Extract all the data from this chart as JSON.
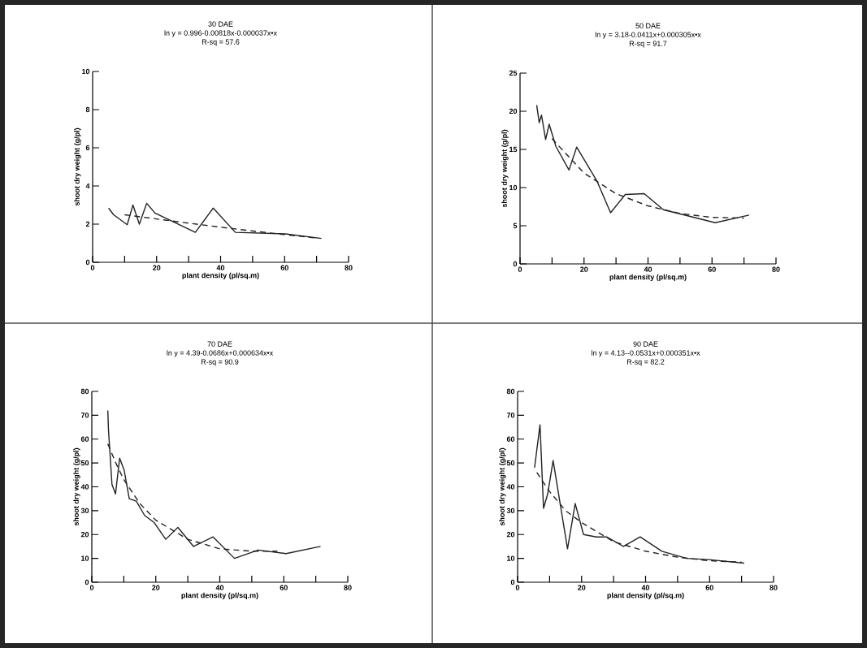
{
  "chart_data": [
    {
      "type": "line",
      "title": "30 DAE",
      "subtitle": "ln y = 0.996-0.00818x-0.000037x•x",
      "annotations": [
        "R-sq = 57.6"
      ],
      "xlabel": "plant density (pl/sq.m)",
      "ylabel": "shoot dry weight (g/pl)",
      "xlim": [
        0,
        80
      ],
      "ylim": [
        0,
        10
      ],
      "xticks": [
        0,
        {
          "value": 10,
          "label": null
        },
        20,
        {
          "value": 30,
          "label": null
        },
        40,
        {
          "value": 50,
          "label": null
        },
        60,
        {
          "value": 70,
          "label": null
        },
        80
      ],
      "yticks": [
        0,
        2,
        4,
        6,
        8,
        10
      ],
      "grid": false,
      "series": [
        {
          "color": "#222222",
          "line_style": "solid",
          "x": [
            5,
            6.5,
            10.8,
            12.6,
            14.6,
            16.9,
            19.5,
            32.1,
            37.7,
            44.6,
            60.2,
            71.5
          ],
          "values": [
            2.84,
            2.5,
            1.97,
            3.0,
            2.0,
            3.09,
            2.58,
            1.57,
            2.84,
            1.57,
            1.49,
            1.25
          ]
        },
        {
          "color": "#222222",
          "line_style": "dashed",
          "x": [
            10,
            20,
            30,
            40,
            50,
            60,
            70
          ],
          "values": [
            2.49,
            2.27,
            2.05,
            1.84,
            1.64,
            1.45,
            1.27
          ]
        }
      ]
    },
    {
      "type": "line",
      "title": "50 DAE",
      "subtitle": "ln y = 3.18-0.0411x+0.000305x•x",
      "annotations": [
        "R-sq = 91.7"
      ],
      "xlabel": "plant density (pl/sq.m)",
      "ylabel": "shoot dry weight (g/pl)",
      "xlim": [
        0,
        80
      ],
      "ylim": [
        0,
        25
      ],
      "xticks": [
        0,
        {
          "value": 10,
          "label": null
        },
        20,
        {
          "value": 30,
          "label": null
        },
        40,
        {
          "value": 50,
          "label": null
        },
        60,
        {
          "value": 70,
          "label": null
        },
        80
      ],
      "yticks": [
        0,
        5,
        10,
        15,
        20,
        25
      ],
      "grid": false,
      "series": [
        {
          "color": "#222222",
          "line_style": "solid",
          "x": [
            5.2,
            6,
            6.7,
            8,
            9.1,
            11.2,
            15.3,
            17.7,
            24.1,
            28.3,
            32.9,
            38.8,
            44.8,
            61,
            71.6
          ],
          "values": [
            20.8,
            18.5,
            19.5,
            16.3,
            18.3,
            15.4,
            12.3,
            15.3,
            10.8,
            6.7,
            9.1,
            9.2,
            7.1,
            5.4,
            6.4
          ]
        },
        {
          "color": "#222222",
          "line_style": "dashed",
          "x": [
            10,
            20,
            30,
            40,
            50,
            60,
            70
          ],
          "values": [
            16.4,
            11.9,
            9.2,
            7.6,
            6.6,
            6.1,
            6.0
          ]
        }
      ]
    },
    {
      "type": "line",
      "title": "70 DAE",
      "subtitle": "ln y = 4.39-0.0686x+0.000634x•x",
      "annotations": [
        "R-sq = 90.9"
      ],
      "xlabel": "plant density (pl/sq.m)",
      "ylabel": "shoot dry weight (g/pl)",
      "xlim": [
        0,
        80
      ],
      "ylim": [
        0,
        80
      ],
      "xticks": [
        0,
        {
          "value": 10,
          "label": null
        },
        20,
        {
          "value": 30,
          "label": null
        },
        40,
        {
          "value": 50,
          "label": null
        },
        60,
        {
          "value": 70,
          "label": null
        },
        80
      ],
      "yticks": [
        0,
        10,
        20,
        30,
        40,
        50,
        60,
        70,
        80
      ],
      "grid": false,
      "series": [
        {
          "color": "#222222",
          "line_style": "solid",
          "x": [
            5,
            5.2,
            6.3,
            7.4,
            8.7,
            10.1,
            11.7,
            13.9,
            16.5,
            19.5,
            23.1,
            26.9,
            31.8,
            37.9,
            44.6,
            52,
            60.7,
            71.5
          ],
          "values": [
            72,
            64,
            41,
            37,
            52,
            47,
            35,
            34,
            28,
            25,
            18,
            23,
            15,
            19,
            10,
            13.5,
            12,
            15
          ]
        },
        {
          "color": "#222222",
          "line_style": "dashed",
          "x": [
            5,
            7.5,
            10,
            15,
            20,
            25,
            30,
            40,
            50,
            58
          ],
          "values": [
            58,
            50,
            43,
            33,
            26,
            22,
            18,
            14,
            13,
            13
          ]
        }
      ]
    },
    {
      "type": "line",
      "title": "90 DAE",
      "subtitle": "ln y = 4.13--0.0531x+0.000351x•x",
      "annotations": [
        "R-sq = 82.2"
      ],
      "xlabel": "plant density (pl/sq.m)",
      "ylabel": "shoot dry weight (g/pl)",
      "xlim": [
        0,
        80
      ],
      "ylim": [
        0,
        80
      ],
      "xticks": [
        0,
        {
          "value": 10,
          "label": null
        },
        20,
        {
          "value": 30,
          "label": null
        },
        40,
        {
          "value": 50,
          "label": null
        },
        60,
        {
          "value": 70,
          "label": null
        },
        80
      ],
      "yticks": [
        0,
        10,
        20,
        30,
        40,
        50,
        60,
        70,
        80
      ],
      "grid": false,
      "series": [
        {
          "color": "#222222",
          "line_style": "solid",
          "x": [
            5.3,
            7,
            8.1,
            9.4,
            11.1,
            15.6,
            18,
            20.6,
            24.6,
            27.8,
            33.1,
            38.3,
            45.1,
            52.8,
            59.7,
            70.8
          ],
          "values": [
            48,
            66,
            31,
            37,
            51,
            14,
            33,
            20,
            19,
            19,
            15,
            19,
            13,
            10,
            9.5,
            8
          ]
        },
        {
          "color": "#222222",
          "line_style": "dashed",
          "x": [
            6,
            10,
            15,
            20,
            30,
            40,
            50,
            60,
            70
          ],
          "values": [
            46,
            38,
            30,
            25,
            17,
            13,
            10.5,
            9,
            8.4
          ]
        }
      ]
    }
  ]
}
